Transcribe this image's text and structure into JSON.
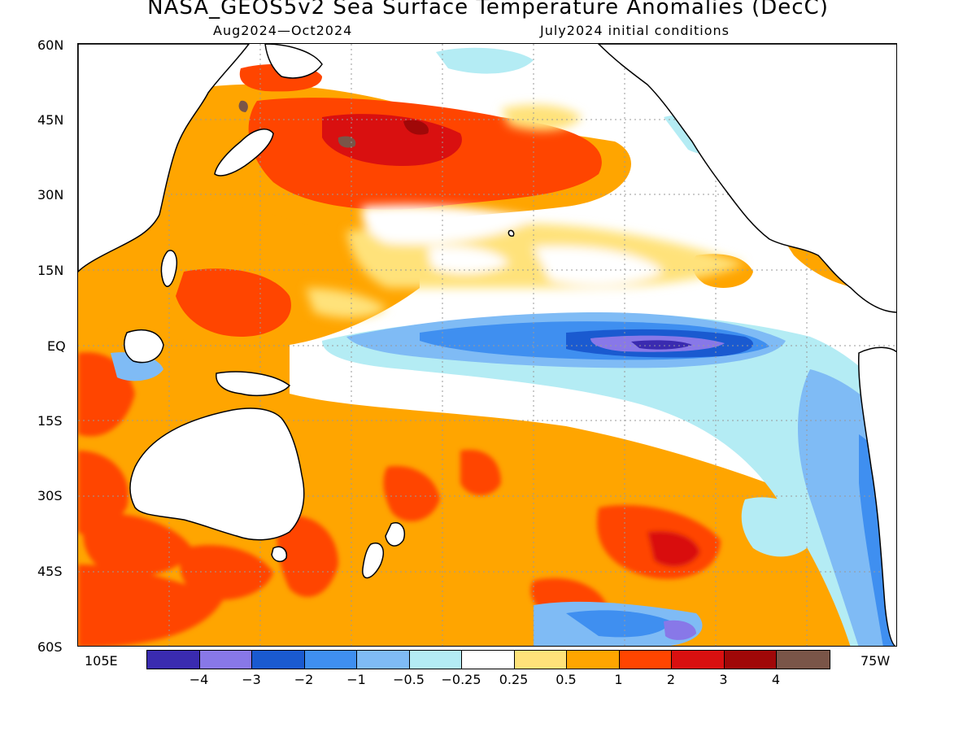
{
  "title": "NASA_GEOS5v2 Sea Surface Temperature Anomalies (DecC)",
  "subtitle_left": "Aug2024—Oct2024",
  "subtitle_right": "July2024 initial conditions",
  "lat_labels": [
    "60N",
    "45N",
    "30N",
    "15N",
    "EQ",
    "15S",
    "30S",
    "45S",
    "60S"
  ],
  "lon_labels": {
    "left": "105E",
    "right": "75W"
  },
  "colorbar": {
    "colors": [
      "#3a2bb0",
      "#8878e8",
      "#1a5ad0",
      "#3f8ff0",
      "#7fbbf5",
      "#b4ecf4",
      "#ffffff",
      "#ffe27a",
      "#ffa500",
      "#ff4500",
      "#d91010",
      "#a00808",
      "#7a5548"
    ],
    "labels": [
      "−4",
      "−3",
      "−2",
      "−1",
      "−0.5",
      "−0.25",
      "0.25",
      "0.5",
      "1",
      "2",
      "3",
      "4"
    ]
  }
}
